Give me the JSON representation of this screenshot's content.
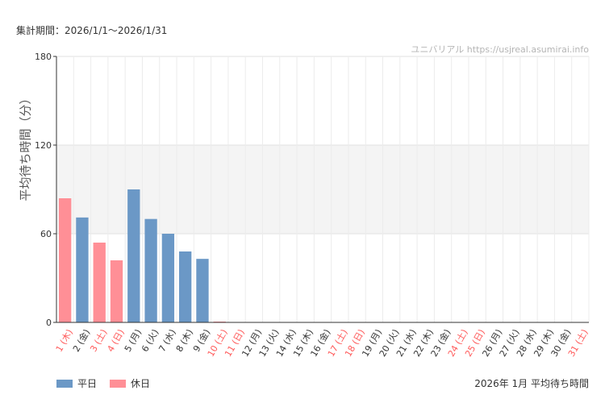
{
  "header": {
    "period": "集計期間：2026/1/1～2026/1/31",
    "credit": "ユニバリアル  https://usjreal.asumirai.info"
  },
  "footer": {
    "title": "2026年 1月 平均待ち時間"
  },
  "colors": {
    "weekday": "#6b98c6",
    "holiday": "#ff8f96",
    "holiday_text": "#ff5a5a",
    "band": "#f4f4f4"
  },
  "chart_data": {
    "type": "bar",
    "ylabel": "平均待ち時間（分）",
    "ylim": [
      0,
      180
    ],
    "yticks": [
      0,
      60,
      120,
      180
    ],
    "grid": true,
    "shaded_band": [
      60,
      120
    ],
    "legend_position": "bottom-left",
    "categories": [
      "1 (木)",
      "2 (金)",
      "3 (土)",
      "4 (日)",
      "5 (月)",
      "6 (火)",
      "7 (水)",
      "8 (木)",
      "9 (金)",
      "10 (土)",
      "11 (日)",
      "12 (月)",
      "13 (火)",
      "14 (水)",
      "15 (木)",
      "16 (金)",
      "17 (土)",
      "18 (日)",
      "19 (月)",
      "20 (火)",
      "21 (水)",
      "22 (木)",
      "23 (金)",
      "24 (土)",
      "25 (日)",
      "26 (月)",
      "27 (火)",
      "28 (水)",
      "29 (木)",
      "30 (金)",
      "31 (土)"
    ],
    "holiday": [
      true,
      false,
      true,
      true,
      false,
      false,
      false,
      false,
      false,
      true,
      true,
      false,
      false,
      false,
      false,
      false,
      true,
      true,
      false,
      false,
      false,
      false,
      false,
      true,
      true,
      false,
      false,
      false,
      false,
      false,
      true
    ],
    "values": [
      84,
      71,
      54,
      42,
      90,
      70,
      60,
      48,
      43,
      0,
      null,
      null,
      null,
      null,
      null,
      null,
      null,
      null,
      null,
      null,
      null,
      null,
      null,
      null,
      null,
      null,
      null,
      null,
      null,
      null,
      null
    ],
    "legend": [
      {
        "key": "weekday",
        "label": "平日"
      },
      {
        "key": "holiday",
        "label": "休日"
      }
    ]
  }
}
